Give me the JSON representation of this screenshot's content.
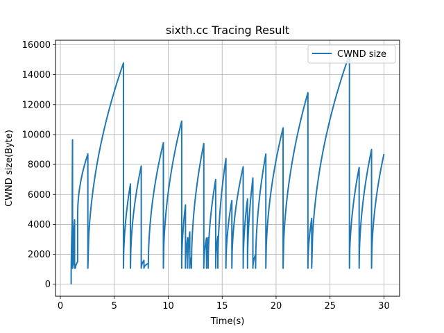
{
  "chart_data": {
    "type": "line",
    "title": "sixth.cc Tracing Result",
    "xlabel": "Time(s)",
    "ylabel": "CWND size(Byte)",
    "xlim": [
      -0.45,
      31.45
    ],
    "ylim": [
      -800,
      16300
    ],
    "xticks": [
      0,
      5,
      10,
      15,
      20,
      25,
      30
    ],
    "yticks": [
      0,
      2000,
      4000,
      6000,
      8000,
      10000,
      12000,
      14000,
      16000
    ],
    "grid": true,
    "legend": {
      "position": "top-right",
      "entries": [
        "CWND size"
      ]
    },
    "colors": {
      "series": "#1f77b4",
      "grid": "#b0b0b0",
      "axes": "#000000"
    },
    "series": [
      {
        "name": "CWND size",
        "segments": [
          {
            "t0": 1.0,
            "t1": 1.0,
            "y0": 0,
            "y1": 0
          },
          {
            "t0": 1.0,
            "t1": 1.1,
            "y0": 0,
            "y1": 4200
          },
          {
            "t0": 1.1,
            "t1": 1.13,
            "y0": 4200,
            "y1": 9650
          },
          {
            "t0": 1.13,
            "t1": 1.22,
            "y0": 1072,
            "y1": 1400
          },
          {
            "t0": 1.22,
            "t1": 1.32,
            "y0": 2800,
            "y1": 4300
          },
          {
            "t0": 1.32,
            "t1": 1.4,
            "y0": 1072,
            "y1": 1300
          },
          {
            "t0": 1.4,
            "t1": 1.6,
            "y0": 1072,
            "y1": 1500
          },
          {
            "t0": 1.6,
            "t1": 2.55,
            "y0": 4600,
            "y1": 8700
          },
          {
            "t0": 2.55,
            "t1": 5.85,
            "y0": 1072,
            "y1": 14780
          },
          {
            "t0": 5.85,
            "t1": 6.5,
            "y0": 1072,
            "y1": 6700
          },
          {
            "t0": 6.5,
            "t1": 7.5,
            "y0": 1072,
            "y1": 7900
          },
          {
            "t0": 7.5,
            "t1": 7.75,
            "y0": 1072,
            "y1": 1600
          },
          {
            "t0": 7.75,
            "t1": 8.15,
            "y0": 1072,
            "y1": 1400
          },
          {
            "t0": 8.15,
            "t1": 9.55,
            "y0": 1072,
            "y1": 9450
          },
          {
            "t0": 9.55,
            "t1": 11.25,
            "y0": 1072,
            "y1": 10900
          },
          {
            "t0": 11.25,
            "t1": 11.6,
            "y0": 1072,
            "y1": 5300
          },
          {
            "t0": 11.6,
            "t1": 11.8,
            "y0": 1072,
            "y1": 3100
          },
          {
            "t0": 11.8,
            "t1": 12.0,
            "y0": 1072,
            "y1": 3500
          },
          {
            "t0": 12.0,
            "t1": 12.15,
            "y0": 1072,
            "y1": 1800
          },
          {
            "t0": 12.15,
            "t1": 13.3,
            "y0": 1072,
            "y1": 9400
          },
          {
            "t0": 13.3,
            "t1": 13.55,
            "y0": 1072,
            "y1": 3100
          },
          {
            "t0": 13.55,
            "t1": 13.7,
            "y0": 1072,
            "y1": 3100
          },
          {
            "t0": 13.7,
            "t1": 14.4,
            "y0": 1072,
            "y1": 7000
          },
          {
            "t0": 14.4,
            "t1": 14.6,
            "y0": 1072,
            "y1": 3200
          },
          {
            "t0": 14.6,
            "t1": 15.35,
            "y0": 1072,
            "y1": 8400
          },
          {
            "t0": 15.35,
            "t1": 15.9,
            "y0": 1072,
            "y1": 5600
          },
          {
            "t0": 15.9,
            "t1": 16.95,
            "y0": 1072,
            "y1": 7850
          },
          {
            "t0": 16.95,
            "t1": 17.35,
            "y0": 1072,
            "y1": 5700
          },
          {
            "t0": 17.35,
            "t1": 17.85,
            "y0": 1072,
            "y1": 7100
          },
          {
            "t0": 17.85,
            "t1": 18.1,
            "y0": 1072,
            "y1": 2000
          },
          {
            "t0": 18.1,
            "t1": 19.05,
            "y0": 1072,
            "y1": 8700
          },
          {
            "t0": 19.05,
            "t1": 20.65,
            "y0": 1072,
            "y1": 10450
          },
          {
            "t0": 20.65,
            "t1": 22.95,
            "y0": 1072,
            "y1": 12800
          },
          {
            "t0": 22.95,
            "t1": 23.3,
            "y0": 1072,
            "y1": 4400
          },
          {
            "t0": 23.3,
            "t1": 26.8,
            "y0": 1072,
            "y1": 15350
          },
          {
            "t0": 26.8,
            "t1": 27.7,
            "y0": 1072,
            "y1": 7800
          },
          {
            "t0": 27.7,
            "t1": 28.85,
            "y0": 1072,
            "y1": 9000
          },
          {
            "t0": 28.85,
            "t1": 30.0,
            "y0": 1072,
            "y1": 8700
          }
        ]
      }
    ]
  }
}
